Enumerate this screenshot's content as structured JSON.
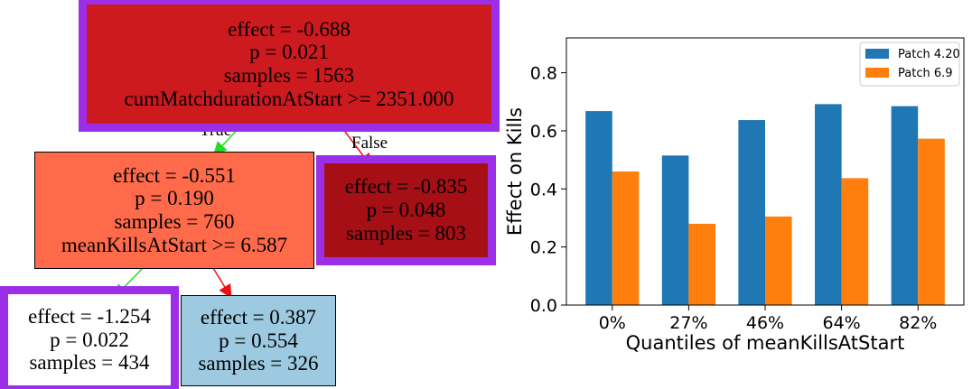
{
  "tree": {
    "colors": {
      "root": "#cc1a1f",
      "n_true": "#fe6a4a",
      "n_false": "#a50f15",
      "n_tt": "#ffffff",
      "n_tf": "#9ecae1",
      "highlight": "#9b2ee6",
      "edge_true": "#22dd22",
      "edge_false": "#ee1111"
    },
    "root": {
      "l1": "effect = -0.688",
      "l2": "p = 0.021",
      "l3": "samples = 1563",
      "l4": "cumMatchdurationAtStart >= 2351.000"
    },
    "n_true": {
      "l1": "effect = -0.551",
      "l2": "p = 0.190",
      "l3": "samples = 760",
      "l4": "meanKillsAtStart >= 6.587"
    },
    "n_false": {
      "l1": "effect = -0.835",
      "l2": "p = 0.048",
      "l3": "samples = 803"
    },
    "n_tt": {
      "l1": "effect = -1.254",
      "l2": "p = 0.022",
      "l3": "samples = 434"
    },
    "n_tf": {
      "l1": "effect = 0.387",
      "l2": "p = 0.554",
      "l3": "samples = 326"
    },
    "edge_true_label": "True",
    "edge_false_label": "False"
  },
  "chart_data": {
    "type": "bar",
    "categories": [
      "0%",
      "27%",
      "46%",
      "64%",
      "82%"
    ],
    "series": [
      {
        "name": "Patch 4.20",
        "color": "#1f77b4",
        "values": [
          0.668,
          0.515,
          0.637,
          0.692,
          0.685
        ]
      },
      {
        "name": "Patch 6.9",
        "color": "#ff7f0e",
        "values": [
          0.46,
          0.28,
          0.305,
          0.437,
          0.573
        ]
      }
    ],
    "xlabel": "Quantiles of meanKillsAtStart",
    "ylabel": "Effect on Kills",
    "ylim": [
      0,
      0.92
    ],
    "yticks": [
      "0.0",
      "0.2",
      "0.4",
      "0.6",
      "0.8"
    ],
    "legend_position": "top-right"
  }
}
